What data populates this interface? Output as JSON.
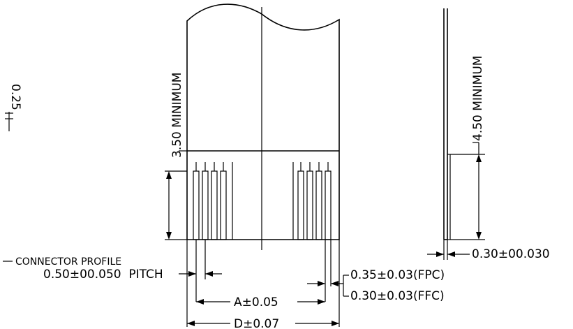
{
  "labels": {
    "left_edge": "0.25",
    "front_min": "3.50 MINIMUM",
    "side_min": "4.50 MINIMUM",
    "thickness": "0.30±00.030",
    "connector_profile": "CONNECTOR PROFILE",
    "pitch": "0.50±00.050  PITCH",
    "fpc": "0.35±0.03(FPC)",
    "ffc": "0.30±0.03(FFC)",
    "a_dim": "A±0.05",
    "d_dim": "D±0.07"
  }
}
